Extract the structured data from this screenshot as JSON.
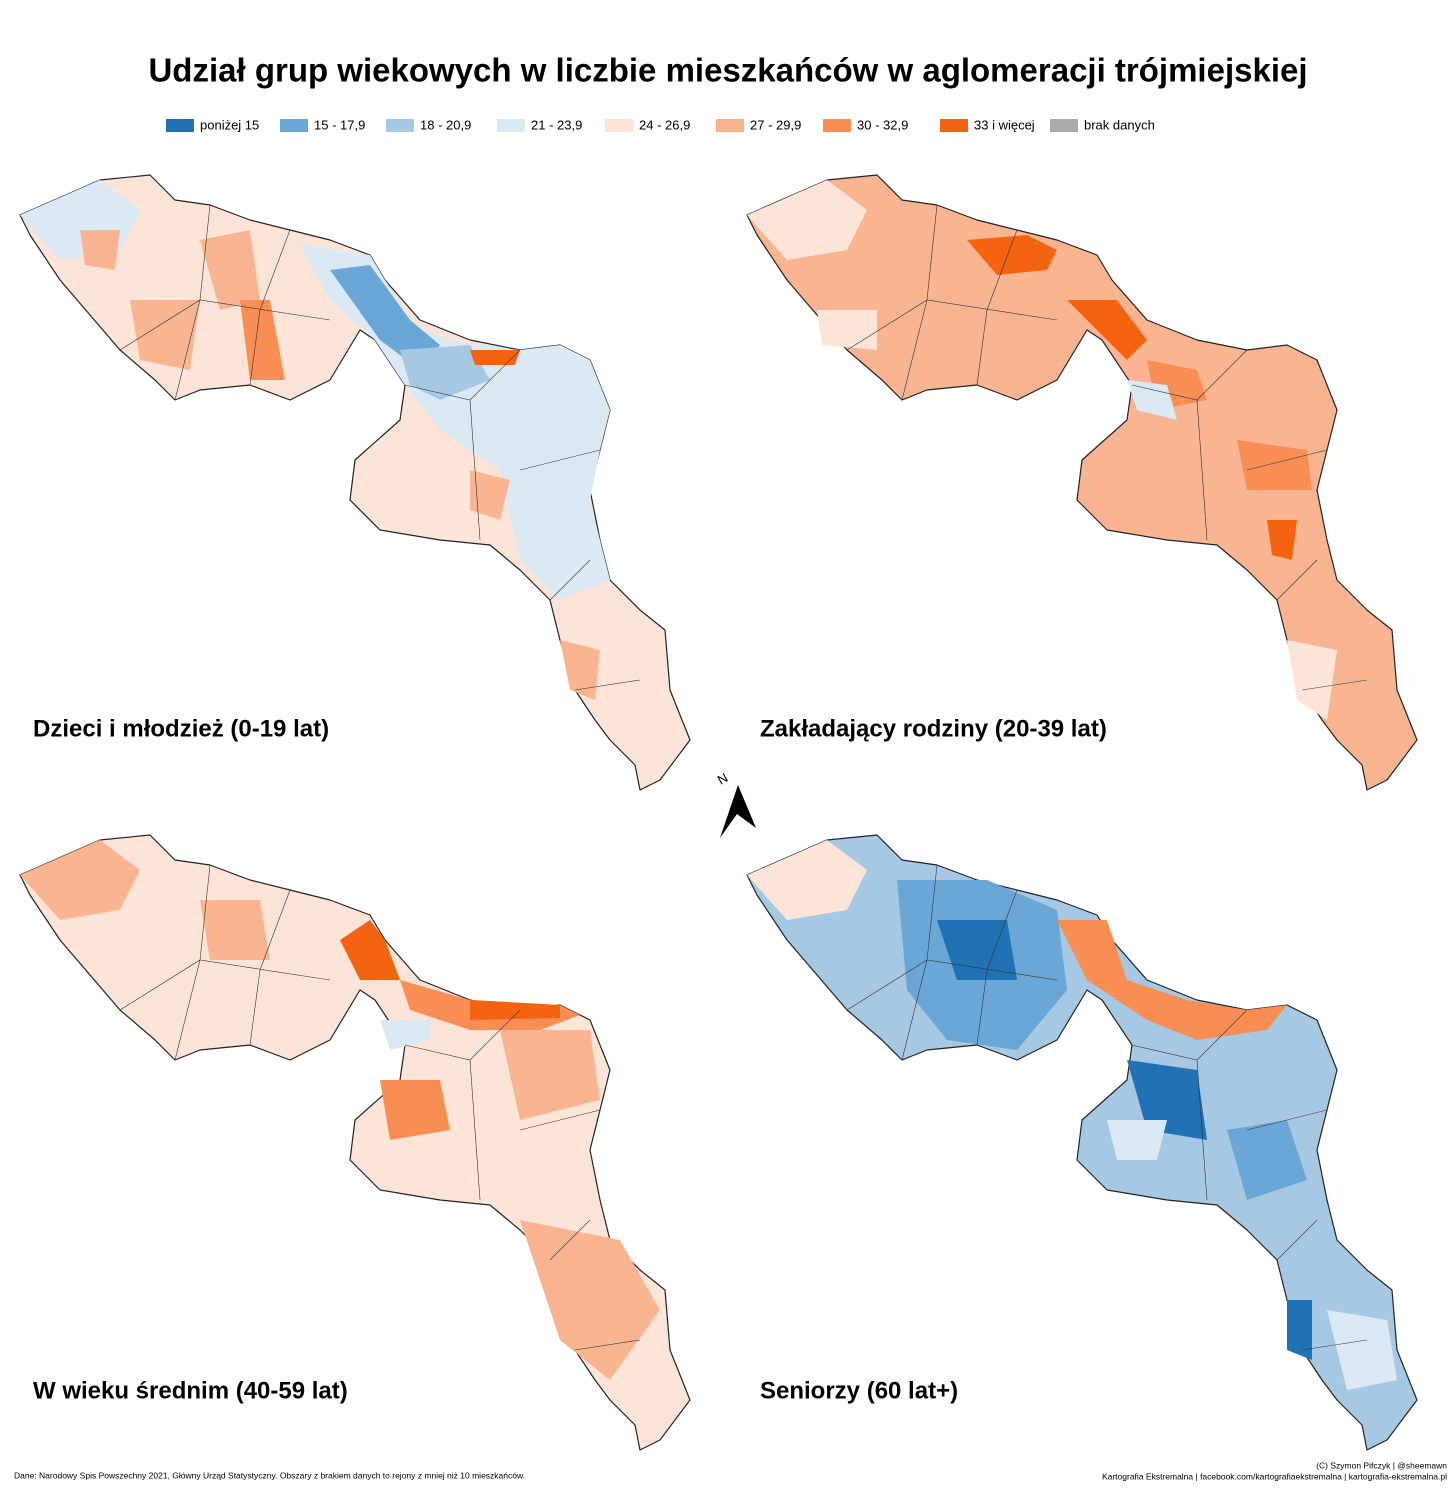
{
  "title": "Udział grup wiekowych w liczbie mieszkańców w aglomeracji trójmiejskiej",
  "legend": {
    "items": [
      {
        "label": "poniżej 15",
        "color": "#2171b5"
      },
      {
        "label": "15 - 17,9",
        "color": "#6aa7d6"
      },
      {
        "label": "18 - 20,9",
        "color": "#a7c8e3"
      },
      {
        "label": "21 - 23,9",
        "color": "#dbe9f4"
      },
      {
        "label": "24 - 26,9",
        "color": "#fde4d8"
      },
      {
        "label": "27 - 29,9",
        "color": "#f9b592"
      },
      {
        "label": "30 - 32,9",
        "color": "#f98e55"
      },
      {
        "label": "33 i więcej",
        "color": "#f36310"
      },
      {
        "label": "brak danych",
        "color": "#aaaaaa"
      }
    ]
  },
  "panels": [
    {
      "label": "Dzieci i młodzież (0-19 lat)"
    },
    {
      "label": "Zakładający rodziny (20-39 lat)"
    },
    {
      "label": "W wieku średnim (40-59 lat)"
    },
    {
      "label": "Seniorzy (60 lat+)"
    }
  ],
  "north_label": "N",
  "footer": {
    "source": "Dane: Narodowy Spis Powszechny 2021, Główny Urząd Statystyczny.  Obszary z brakiem danych to rejony z mniej niż 10 mieszkańców.",
    "credits": [
      "(C) Szymon Pifczyk | @sheemawn",
      "Kartografia Ekstremalna | facebook.com/kartografiaekstremalna | kartografia-ekstremalna.pl"
    ]
  }
}
